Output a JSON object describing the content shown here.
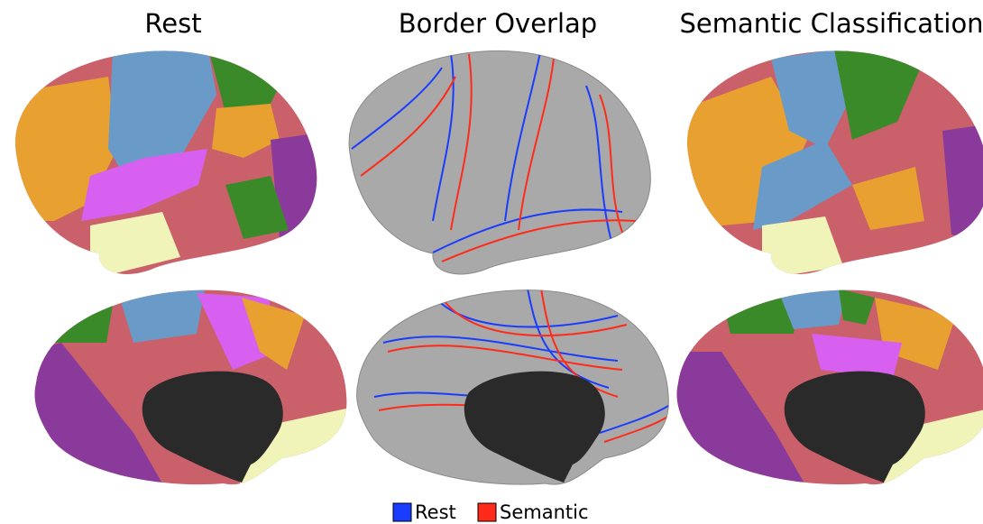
{
  "titles": [
    "Rest",
    "Border Overlap",
    "Semantic Classification"
  ],
  "legend": [
    {
      "label": "Rest",
      "color": "#1a3cff"
    },
    {
      "label": "Semantic",
      "color": "#ff2b1a"
    }
  ]
}
